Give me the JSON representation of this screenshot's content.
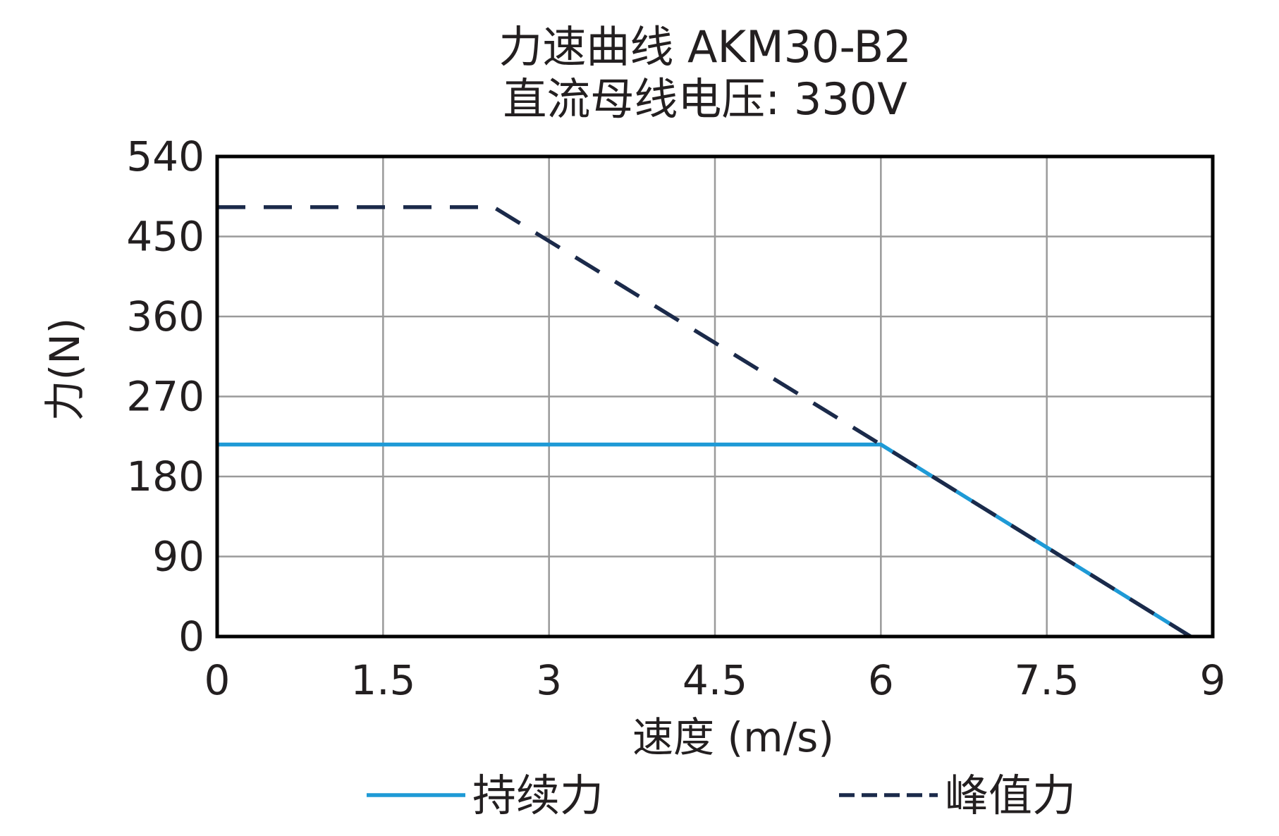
{
  "chart_data": {
    "type": "line",
    "title": "力速曲线 AKM30-B2",
    "subtitle": "直流母线电压: 330V",
    "xlabel": "速度 (m/s)",
    "ylabel": "力(N)",
    "xlim": [
      0,
      9
    ],
    "ylim": [
      0,
      540
    ],
    "x_ticks": [
      0,
      1.5,
      3,
      4.5,
      6,
      7.5,
      9
    ],
    "x_tick_labels": [
      "0",
      "1.5",
      "3",
      "4.5",
      "6",
      "7.5",
      "9"
    ],
    "y_ticks": [
      0,
      90,
      180,
      270,
      360,
      450,
      540
    ],
    "y_tick_labels": [
      "0",
      "90",
      "180",
      "270",
      "360",
      "450",
      "540"
    ],
    "grid": true,
    "legend_position": "bottom",
    "series": [
      {
        "name": "持续力",
        "style": "solid",
        "color": "#1e9ad6",
        "points": [
          [
            0,
            216
          ],
          [
            6,
            216
          ],
          [
            8.8,
            0
          ]
        ]
      },
      {
        "name": "峰值力",
        "style": "dashed",
        "color": "#1b2a4a",
        "points": [
          [
            0,
            483
          ],
          [
            2.5,
            483
          ],
          [
            6,
            216
          ],
          [
            8.8,
            0
          ]
        ]
      }
    ]
  }
}
